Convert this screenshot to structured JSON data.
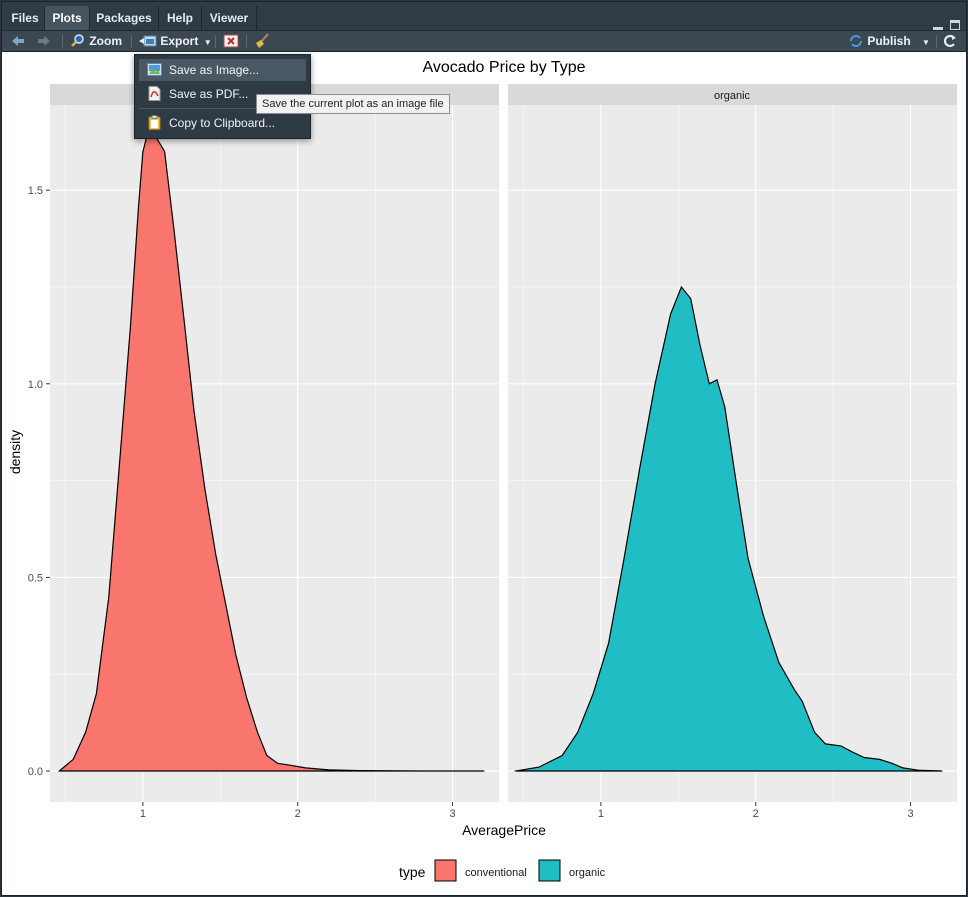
{
  "tabs": [
    {
      "label": "Files",
      "active": false
    },
    {
      "label": "Plots",
      "active": true
    },
    {
      "label": "Packages",
      "active": false
    },
    {
      "label": "Help",
      "active": false
    },
    {
      "label": "Viewer",
      "active": false
    }
  ],
  "toolbar": {
    "zoom_label": "Zoom",
    "export_label": "Export",
    "publish_label": "Publish"
  },
  "export_menu": {
    "items": [
      {
        "label": "Save as Image...",
        "highlighted": true
      },
      {
        "label": "Save as PDF...",
        "highlighted": false
      },
      {
        "label": "Copy to Clipboard...",
        "highlighted": false
      }
    ]
  },
  "tooltip": "Save the current plot as an image file",
  "colors": {
    "conventional": "#F8766D",
    "organic": "#20BDC5",
    "panel_bg": "#EBEBEB",
    "strip_bg": "#D9D9D9",
    "chrome_bg": "#2F3B46"
  },
  "chart_data": {
    "type": "area",
    "title": "Avocado Price by Type",
    "xlabel": "AveragePrice",
    "ylabel": "density",
    "xlim": [
      0.4,
      3.3
    ],
    "ylim": [
      -0.08,
      1.72
    ],
    "x_ticks": [
      1,
      2,
      3
    ],
    "y_ticks": [
      0.0,
      0.5,
      1.0,
      1.5
    ],
    "y_tick_labels": [
      "0.0",
      "0.5",
      "1.0",
      "1.5"
    ],
    "x_tick_labels": [
      "1",
      "2",
      "3"
    ],
    "legend": {
      "title": "type",
      "position": "bottom"
    },
    "grid": true,
    "facets": [
      {
        "strip": "",
        "name": "conventional",
        "points": [
          [
            0.46,
            0.0
          ],
          [
            0.55,
            0.03
          ],
          [
            0.63,
            0.1
          ],
          [
            0.7,
            0.2
          ],
          [
            0.78,
            0.45
          ],
          [
            0.85,
            0.8
          ],
          [
            0.92,
            1.15
          ],
          [
            0.97,
            1.45
          ],
          [
            1.0,
            1.6
          ],
          [
            1.03,
            1.645
          ],
          [
            1.08,
            1.64
          ],
          [
            1.14,
            1.6
          ],
          [
            1.2,
            1.4
          ],
          [
            1.27,
            1.15
          ],
          [
            1.33,
            0.93
          ],
          [
            1.4,
            0.73
          ],
          [
            1.47,
            0.56
          ],
          [
            1.54,
            0.42
          ],
          [
            1.6,
            0.3
          ],
          [
            1.67,
            0.19
          ],
          [
            1.74,
            0.1
          ],
          [
            1.8,
            0.04
          ],
          [
            1.87,
            0.02
          ],
          [
            1.95,
            0.015
          ],
          [
            2.05,
            0.008
          ],
          [
            2.2,
            0.003
          ],
          [
            2.4,
            0.001
          ],
          [
            2.8,
            0.0
          ],
          [
            3.2,
            0.0
          ]
        ]
      },
      {
        "strip": "organic",
        "name": "organic",
        "points": [
          [
            0.45,
            0.0
          ],
          [
            0.6,
            0.01
          ],
          [
            0.75,
            0.04
          ],
          [
            0.85,
            0.1
          ],
          [
            0.95,
            0.2
          ],
          [
            1.05,
            0.33
          ],
          [
            1.15,
            0.55
          ],
          [
            1.25,
            0.78
          ],
          [
            1.35,
            1.0
          ],
          [
            1.45,
            1.18
          ],
          [
            1.52,
            1.25
          ],
          [
            1.58,
            1.22
          ],
          [
            1.64,
            1.1
          ],
          [
            1.7,
            1.0
          ],
          [
            1.75,
            1.01
          ],
          [
            1.8,
            0.94
          ],
          [
            1.88,
            0.73
          ],
          [
            1.95,
            0.55
          ],
          [
            2.05,
            0.4
          ],
          [
            2.15,
            0.28
          ],
          [
            2.25,
            0.21
          ],
          [
            2.3,
            0.18
          ],
          [
            2.38,
            0.1
          ],
          [
            2.45,
            0.07
          ],
          [
            2.55,
            0.065
          ],
          [
            2.62,
            0.05
          ],
          [
            2.7,
            0.035
          ],
          [
            2.8,
            0.03
          ],
          [
            2.88,
            0.02
          ],
          [
            2.95,
            0.008
          ],
          [
            3.05,
            0.002
          ],
          [
            3.2,
            0.0
          ]
        ]
      }
    ]
  }
}
